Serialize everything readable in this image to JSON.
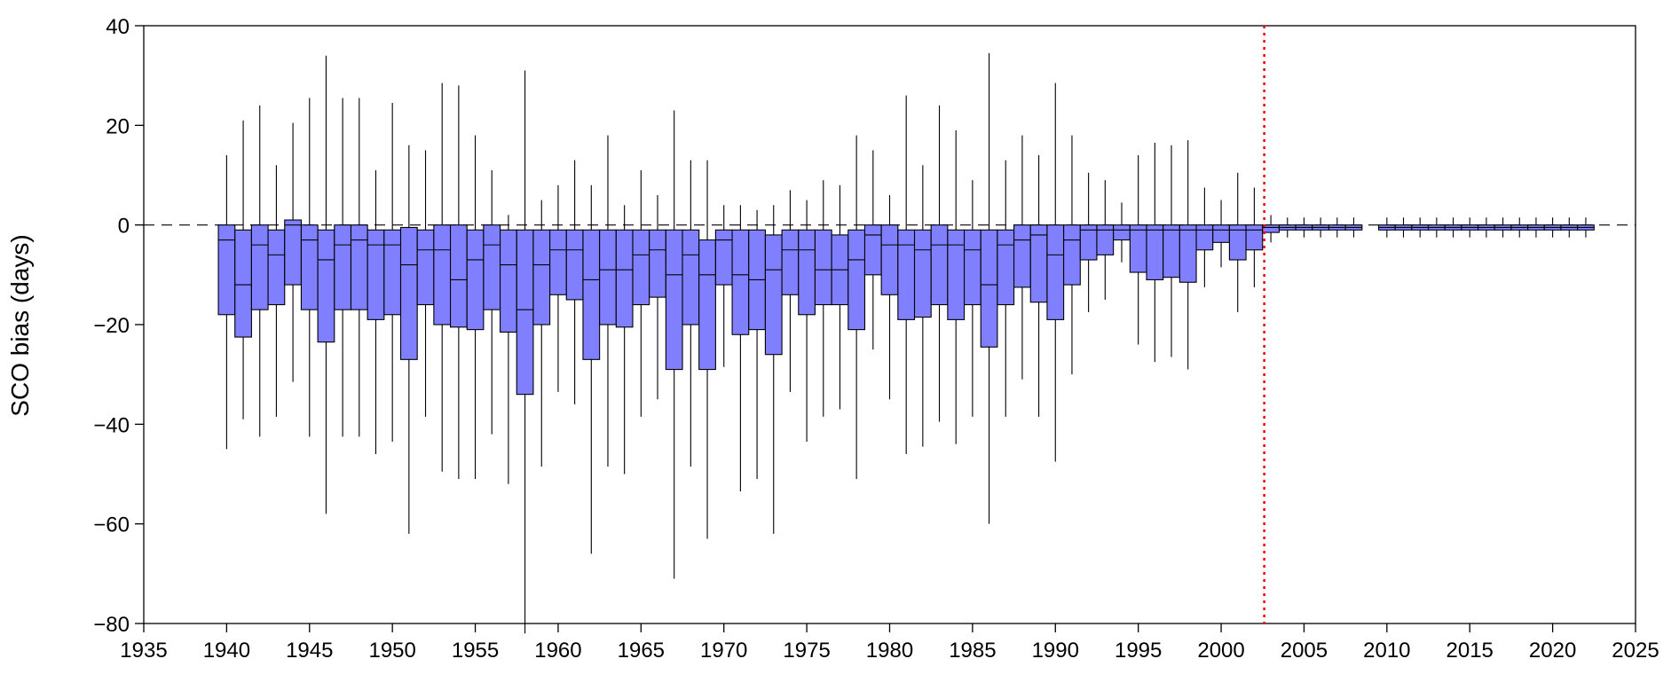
{
  "chart_data": {
    "type": "box",
    "title": "",
    "xlabel": "",
    "ylabel": "SCO bias (days)",
    "xlim": [
      1935,
      2025
    ],
    "ylim": [
      -80,
      40
    ],
    "xticks": [
      1935,
      1940,
      1945,
      1950,
      1955,
      1960,
      1965,
      1970,
      1975,
      1980,
      1985,
      1990,
      1995,
      2000,
      2005,
      2010,
      2015,
      2020,
      2025
    ],
    "yticks": [
      -80,
      -60,
      -40,
      -20,
      0,
      20,
      40
    ],
    "reference_line": {
      "y": 0,
      "style": "dashed",
      "color": "#000000"
    },
    "marker_line": {
      "x": 2002.6,
      "style": "dotted",
      "color": "#ff0000"
    },
    "box_fill_color": "#8080ff",
    "box_edge_color": "#000000",
    "grid": false,
    "series": [
      {
        "boxes": [
          {
            "x": 1940,
            "q1": -18,
            "median": -3,
            "q3": 0,
            "min": -45,
            "max": 14
          },
          {
            "x": 1941,
            "q1": -22.5,
            "median": -12,
            "q3": -1,
            "min": -39,
            "max": 21
          },
          {
            "x": 1942,
            "q1": -17,
            "median": -4,
            "q3": 0,
            "min": -42.5,
            "max": 24
          },
          {
            "x": 1943,
            "q1": -16,
            "median": -6,
            "q3": -1,
            "min": -38.5,
            "max": 12
          },
          {
            "x": 1944,
            "q1": -12,
            "median": 0,
            "q3": 1,
            "min": -31.5,
            "max": 20.5
          },
          {
            "x": 1945,
            "q1": -17,
            "median": -3,
            "q3": 0,
            "min": -42.5,
            "max": 25.5
          },
          {
            "x": 1946,
            "q1": -23.5,
            "median": -7,
            "q3": -1,
            "min": -58,
            "max": 34
          },
          {
            "x": 1947,
            "q1": -17,
            "median": -4,
            "q3": 0,
            "min": -42.5,
            "max": 25.5
          },
          {
            "x": 1948,
            "q1": -17,
            "median": -3,
            "q3": 0,
            "min": -42.5,
            "max": 25.5
          },
          {
            "x": 1949,
            "q1": -19,
            "median": -4,
            "q3": -1,
            "min": -46,
            "max": 11
          },
          {
            "x": 1950,
            "q1": -18,
            "median": -4,
            "q3": -1,
            "min": -43.5,
            "max": 24.5
          },
          {
            "x": 1951,
            "q1": -27,
            "median": -8,
            "q3": -0.5,
            "min": -62,
            "max": 16
          },
          {
            "x": 1952,
            "q1": -16,
            "median": -5,
            "q3": -1,
            "min": -38.5,
            "max": 15
          },
          {
            "x": 1953,
            "q1": -20,
            "median": -5,
            "q3": 0,
            "min": -49.5,
            "max": 28.5
          },
          {
            "x": 1954,
            "q1": -20.5,
            "median": -11,
            "q3": 0,
            "min": -51,
            "max": 28
          },
          {
            "x": 1955,
            "q1": -21,
            "median": -7,
            "q3": -1,
            "min": -51,
            "max": 18
          },
          {
            "x": 1956,
            "q1": -17,
            "median": -4,
            "q3": 0,
            "min": -42,
            "max": 11
          },
          {
            "x": 1957,
            "q1": -21.5,
            "median": -8,
            "q3": -1,
            "min": -52,
            "max": 2
          },
          {
            "x": 1958,
            "q1": -34,
            "median": -17,
            "q3": -1,
            "min": -82,
            "max": 31
          },
          {
            "x": 1959,
            "q1": -20,
            "median": -8,
            "q3": -1,
            "min": -48.5,
            "max": 5
          },
          {
            "x": 1960,
            "q1": -14,
            "median": -5,
            "q3": -1,
            "min": -33.5,
            "max": 8
          },
          {
            "x": 1961,
            "q1": -15,
            "median": -5,
            "q3": -1,
            "min": -36,
            "max": 13
          },
          {
            "x": 1962,
            "q1": -27,
            "median": -11,
            "q3": -1,
            "min": -66,
            "max": 8
          },
          {
            "x": 1963,
            "q1": -20,
            "median": -9,
            "q3": -1,
            "min": -48.5,
            "max": 18
          },
          {
            "x": 1964,
            "q1": -20.5,
            "median": -9,
            "q3": -1,
            "min": -50,
            "max": 4
          },
          {
            "x": 1965,
            "q1": -16,
            "median": -6,
            "q3": -1,
            "min": -38.5,
            "max": 11
          },
          {
            "x": 1966,
            "q1": -14.5,
            "median": -5,
            "q3": -1,
            "min": -35,
            "max": 6
          },
          {
            "x": 1967,
            "q1": -29,
            "median": -10,
            "q3": -1,
            "min": -71,
            "max": 23
          },
          {
            "x": 1968,
            "q1": -20,
            "median": -6,
            "q3": -1,
            "min": -48.5,
            "max": 13
          },
          {
            "x": 1969,
            "q1": -29,
            "median": -10,
            "q3": -3,
            "min": -63,
            "max": 13
          },
          {
            "x": 1970,
            "q1": -12,
            "median": -3,
            "q3": -1,
            "min": -28.5,
            "max": 4
          },
          {
            "x": 1971,
            "q1": -22,
            "median": -10,
            "q3": -1,
            "min": -53.5,
            "max": 4
          },
          {
            "x": 1972,
            "q1": -21,
            "median": -11,
            "q3": -1,
            "min": -51,
            "max": 3
          },
          {
            "x": 1973,
            "q1": -26,
            "median": -9,
            "q3": -2,
            "min": -62,
            "max": 4
          },
          {
            "x": 1974,
            "q1": -14,
            "median": -5,
            "q3": -1,
            "min": -33.5,
            "max": 7
          },
          {
            "x": 1975,
            "q1": -18,
            "median": -5,
            "q3": -1,
            "min": -43.5,
            "max": 5
          },
          {
            "x": 1976,
            "q1": -16,
            "median": -9,
            "q3": -1,
            "min": -38.5,
            "max": 9
          },
          {
            "x": 1977,
            "q1": -16,
            "median": -9,
            "q3": -2,
            "min": -37,
            "max": 8
          },
          {
            "x": 1978,
            "q1": -21,
            "median": -7,
            "q3": -1,
            "min": -51,
            "max": 18
          },
          {
            "x": 1979,
            "q1": -10,
            "median": -2,
            "q3": 0,
            "min": -25,
            "max": 15
          },
          {
            "x": 1980,
            "q1": -14,
            "median": -4,
            "q3": 0,
            "min": -35,
            "max": 6
          },
          {
            "x": 1981,
            "q1": -19,
            "median": -4,
            "q3": -1,
            "min": -46,
            "max": 26
          },
          {
            "x": 1982,
            "q1": -18.5,
            "median": -5,
            "q3": -1,
            "min": -44.5,
            "max": 12
          },
          {
            "x": 1983,
            "q1": -16,
            "median": -4,
            "q3": 0,
            "min": -39.5,
            "max": 24
          },
          {
            "x": 1984,
            "q1": -19,
            "median": -4,
            "q3": -1,
            "min": -44,
            "max": 19
          },
          {
            "x": 1985,
            "q1": -16,
            "median": -5,
            "q3": -1,
            "min": -38.5,
            "max": 9
          },
          {
            "x": 1986,
            "q1": -24.5,
            "median": -12,
            "q3": -1,
            "min": -60,
            "max": 34.5
          },
          {
            "x": 1987,
            "q1": -16,
            "median": -4,
            "q3": -1,
            "min": -38.5,
            "max": 13
          },
          {
            "x": 1988,
            "q1": -12.5,
            "median": -3,
            "q3": 0,
            "min": -31,
            "max": 18
          },
          {
            "x": 1989,
            "q1": -15.5,
            "median": -2,
            "q3": 0,
            "min": -38.5,
            "max": 14
          },
          {
            "x": 1990,
            "q1": -19,
            "median": -6,
            "q3": 0,
            "min": -47.5,
            "max": 28.5
          },
          {
            "x": 1991,
            "q1": -12,
            "median": -3,
            "q3": 0,
            "min": -30,
            "max": 18
          },
          {
            "x": 1992,
            "q1": -7,
            "median": -1,
            "q3": 0,
            "min": -17.5,
            "max": 10.5
          },
          {
            "x": 1993,
            "q1": -6,
            "median": -1,
            "q3": 0,
            "min": -15,
            "max": 9
          },
          {
            "x": 1994,
            "q1": -3,
            "median": -1,
            "q3": 0,
            "min": -7.5,
            "max": 4.5
          },
          {
            "x": 1995,
            "q1": -9.5,
            "median": -1,
            "q3": 0,
            "min": -24,
            "max": 14
          },
          {
            "x": 1996,
            "q1": -11,
            "median": -1,
            "q3": 0,
            "min": -27.5,
            "max": 16.5
          },
          {
            "x": 1997,
            "q1": -10.5,
            "median": -1,
            "q3": 0,
            "min": -26.5,
            "max": 16
          },
          {
            "x": 1998,
            "q1": -11.5,
            "median": -1,
            "q3": 0,
            "min": -29,
            "max": 17
          },
          {
            "x": 1999,
            "q1": -5,
            "median": -1,
            "q3": 0,
            "min": -12.5,
            "max": 7.5
          },
          {
            "x": 2000,
            "q1": -3.5,
            "median": -1,
            "q3": 0,
            "min": -8.5,
            "max": 5
          },
          {
            "x": 2001,
            "q1": -7,
            "median": -1,
            "q3": 0,
            "min": -17.5,
            "max": 10.5
          },
          {
            "x": 2002,
            "q1": -5,
            "median": -1,
            "q3": 0,
            "min": -12.5,
            "max": 7.5
          },
          {
            "x": 2003,
            "q1": -1.5,
            "median": -0.5,
            "q3": 0,
            "min": -3.5,
            "max": 2
          },
          {
            "x": 2004,
            "q1": -1,
            "median": -0.5,
            "q3": 0,
            "min": -2.5,
            "max": 1.5
          },
          {
            "x": 2005,
            "q1": -1,
            "median": -0.5,
            "q3": 0,
            "min": -2.5,
            "max": 1.5
          },
          {
            "x": 2006,
            "q1": -1,
            "median": -0.5,
            "q3": 0,
            "min": -2.5,
            "max": 1.5
          },
          {
            "x": 2007,
            "q1": -1,
            "median": -0.5,
            "q3": 0,
            "min": -2.5,
            "max": 1.5
          },
          {
            "x": 2008,
            "q1": -1,
            "median": -0.5,
            "q3": 0,
            "min": -2.5,
            "max": 1.5
          },
          {
            "x": 2010,
            "q1": -1,
            "median": -0.5,
            "q3": 0,
            "min": -2.5,
            "max": 1.5
          },
          {
            "x": 2011,
            "q1": -1,
            "median": -0.5,
            "q3": 0,
            "min": -2.5,
            "max": 1.5
          },
          {
            "x": 2012,
            "q1": -1,
            "median": -0.5,
            "q3": 0,
            "min": -2.5,
            "max": 1.5
          },
          {
            "x": 2013,
            "q1": -1,
            "median": -0.5,
            "q3": 0,
            "min": -2.5,
            "max": 1.5
          },
          {
            "x": 2014,
            "q1": -1,
            "median": -0.5,
            "q3": 0,
            "min": -2.5,
            "max": 1.5
          },
          {
            "x": 2015,
            "q1": -1,
            "median": -0.5,
            "q3": 0,
            "min": -2.5,
            "max": 1.5
          },
          {
            "x": 2016,
            "q1": -1,
            "median": -0.5,
            "q3": 0,
            "min": -2.5,
            "max": 1.5
          },
          {
            "x": 2017,
            "q1": -1,
            "median": -0.5,
            "q3": 0,
            "min": -2.5,
            "max": 1.5
          },
          {
            "x": 2018,
            "q1": -1,
            "median": -0.5,
            "q3": 0,
            "min": -2.5,
            "max": 1.5
          },
          {
            "x": 2019,
            "q1": -1,
            "median": -0.5,
            "q3": 0,
            "min": -2.5,
            "max": 1.5
          },
          {
            "x": 2020,
            "q1": -1,
            "median": -0.5,
            "q3": 0,
            "min": -2.5,
            "max": 1.5
          },
          {
            "x": 2021,
            "q1": -1,
            "median": -0.5,
            "q3": 0,
            "min": -2.5,
            "max": 1.5
          },
          {
            "x": 2022,
            "q1": -1,
            "median": -0.5,
            "q3": 0,
            "min": -2.5,
            "max": 1.5
          }
        ]
      }
    ]
  }
}
